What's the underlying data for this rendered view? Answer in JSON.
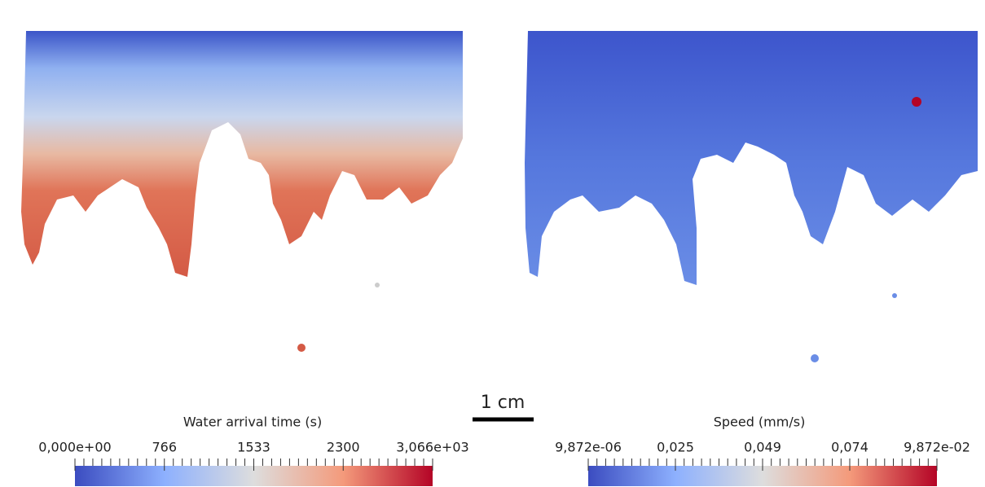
{
  "scale_bar": "1 cm",
  "panels": [
    {
      "colorbar": {
        "title": "Water arrival time (s)",
        "labels": [
          "0,000e+00",
          "766",
          "1533",
          "2300",
          "3,066e+03"
        ]
      }
    },
    {
      "colorbar": {
        "title": "Speed (mm/s)",
        "labels": [
          "9,872e-06",
          "0,025",
          "0,049",
          "0,074",
          "9,872e-02"
        ]
      }
    }
  ]
}
